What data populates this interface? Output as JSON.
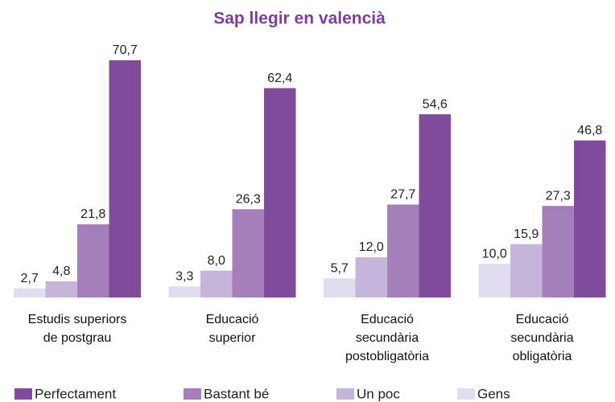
{
  "chart_data": {
    "type": "bar",
    "title": "Sap llegir en valencià",
    "categories": [
      "Estudis superiors\nde postgrau",
      "Educació\nsuperior",
      "Educació\nsecundària\npostobligatòria",
      "Educació\nsecundària\nobligatòria"
    ],
    "series": [
      {
        "name": "Gens",
        "color": "#e1dcef",
        "values": [
          2.7,
          3.3,
          5.7,
          10.0
        ],
        "value_labels": [
          "2,7",
          "3,3",
          "5,7",
          "10,0"
        ]
      },
      {
        "name": "Un poc",
        "color": "#c6b5db",
        "values": [
          4.8,
          8.0,
          12.0,
          15.9
        ],
        "value_labels": [
          "4,8",
          "8,0",
          "12,0",
          "15,9"
        ]
      },
      {
        "name": "Bastant bé",
        "color": "#a57fba",
        "values": [
          21.8,
          26.3,
          27.7,
          27.3
        ],
        "value_labels": [
          "21,8",
          "26,3",
          "27,7",
          "27,3"
        ]
      },
      {
        "name": "Perfectament",
        "color": "#804b9b",
        "values": [
          70.7,
          62.4,
          54.6,
          46.8
        ],
        "value_labels": [
          "70,7",
          "62,4",
          "54,6",
          "46,8"
        ]
      }
    ],
    "ylim": [
      0,
      75
    ]
  }
}
